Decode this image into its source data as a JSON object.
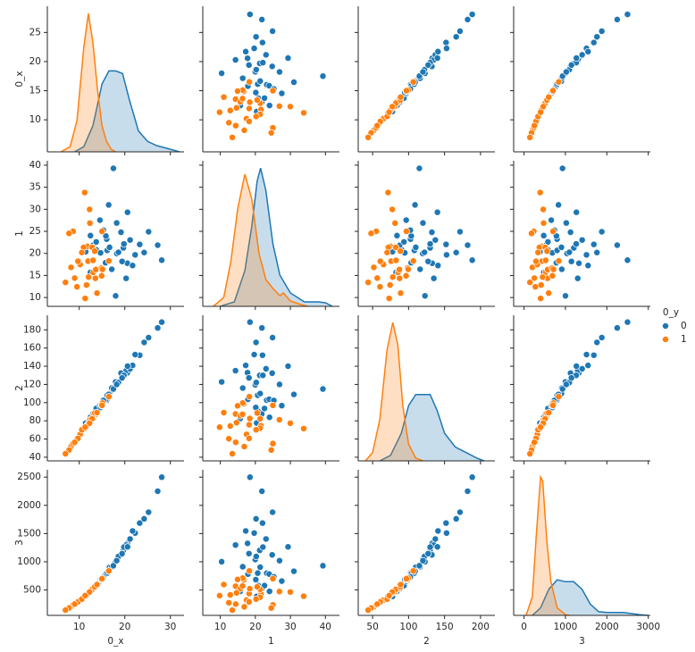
{
  "chart_data": {
    "type": "pairplot",
    "variables": [
      "0_x",
      "1",
      "2",
      "3"
    ],
    "legend_title": "0_y",
    "axes": [
      {
        "xlim": [
          3,
          33
        ],
        "xticks": [
          10,
          20,
          30
        ],
        "ylim": [
          4.5,
          29.5
        ],
        "yticks": [
          10,
          15,
          20,
          25
        ]
      },
      {
        "xlim": [
          5,
          44
        ],
        "xticks": [
          10,
          20,
          30,
          40
        ],
        "ylim": [
          8,
          41
        ],
        "yticks": [
          10,
          15,
          20,
          25,
          30,
          35,
          40
        ]
      },
      {
        "xlim": [
          30,
          220
        ],
        "xticks": [
          50,
          100,
          150,
          200
        ],
        "ylim": [
          36,
          196
        ],
        "yticks": [
          40,
          60,
          80,
          100,
          120,
          140,
          160,
          180
        ]
      },
      {
        "xlim": [
          -250,
          3050
        ],
        "xticks": [
          0,
          1000,
          2000,
          3000
        ],
        "ylim": [
          50,
          2630
        ],
        "yticks": [
          500,
          1000,
          1500,
          2000,
          2500
        ]
      }
    ],
    "series": [
      {
        "name": "0",
        "color": "#1f77b4",
        "columns": [
          [
            17.99,
            20.57,
            19.69,
            11.42,
            20.29,
            12.45,
            18.25,
            13.71,
            13.0,
            12.46,
            16.02,
            15.78,
            19.17,
            15.85,
            13.73,
            14.54,
            14.68,
            16.13,
            19.81,
            21.16,
            16.65,
            17.14,
            18.61,
            28.11,
            27.22,
            25.22,
            23.27,
            24.25,
            22.27,
            17.5,
            18.22,
            21.71,
            16.46,
            15.3,
            19.4,
            20.6
          ],
          [
            10.38,
            17.77,
            21.25,
            20.38,
            14.34,
            15.7,
            19.98,
            20.83,
            21.82,
            24.04,
            23.24,
            17.89,
            24.8,
            23.95,
            22.61,
            27.54,
            20.13,
            20.68,
            22.15,
            23.04,
            21.38,
            16.4,
            20.25,
            18.47,
            21.87,
            24.91,
            22.04,
            20.2,
            19.67,
            39.28,
            26.9,
            17.25,
            31.0,
            25.27,
            18.18,
            29.33
          ],
          [
            122.8,
            132.9,
            130.0,
            77.6,
            135.1,
            82.6,
            119.6,
            90.2,
            87.5,
            83.9,
            102.7,
            103.6,
            132.4,
            103.7,
            93.6,
            96.7,
            94.7,
            108.1,
            130.0,
            137.2,
            110.0,
            116.0,
            122.1,
            188.5,
            182.1,
            171.5,
            152.1,
            166.2,
            152.8,
            115.0,
            120.0,
            140.9,
            109.0,
            102.4,
            127.2,
            140.1
          ],
          [
            1001,
            1326,
            1203,
            386,
            1297,
            477,
            1040,
            578,
            520,
            476,
            798,
            781,
            1123,
            782,
            578,
            658,
            684,
            799,
            1260,
            1404,
            904,
            912,
            1094,
            2499,
            2250,
            1878,
            1686,
            1761,
            1509,
            930,
            1020,
            1546,
            832,
            732,
            1145,
            1265
          ]
        ],
        "kde": [
          {
            "x": [
              9,
              11,
              13,
              15,
              16.5,
              18,
              19.5,
              21,
              23,
              25,
              27,
              30,
              32
            ],
            "density": [
              0,
              0.01,
              0.05,
              0.13,
              0.155,
              0.155,
              0.15,
              0.1,
              0.04,
              0.02,
              0.012,
              0.005,
              0
            ]
          },
          {
            "x": [
              10,
              14,
              17,
              19,
              20.5,
              21.5,
              23,
              25,
              27,
              30,
              34,
              38,
              40,
              42
            ],
            "density": [
              0,
              0.005,
              0.04,
              0.09,
              0.14,
              0.155,
              0.13,
              0.07,
              0.035,
              0.015,
              0.005,
              0.005,
              0.004,
              0
            ]
          },
          {
            "x": [
              60,
              75,
              90,
              100,
              110,
              120,
              130,
              140,
              150,
              165,
              180,
              195,
              205
            ],
            "density": [
              0,
              0.002,
              0.01,
              0.02,
              0.024,
              0.024,
              0.024,
              0.018,
              0.01,
              0.005,
              0.003,
              0.001,
              0
            ]
          },
          {
            "x": [
              200,
              400,
              600,
              800,
              1000,
              1200,
              1400,
              1600,
              1800,
              2000,
              2400,
              2800,
              3000
            ],
            "density": [
              0,
              0.0002,
              0.0007,
              0.00095,
              0.0009,
              0.0009,
              0.0007,
              0.0003,
              0.0001,
              8e-05,
              8e-05,
              2e-05,
              0
            ]
          }
        ]
      },
      {
        "name": "1",
        "color": "#ff7f0e",
        "columns": [
          [
            13.54,
            13.08,
            9.5,
            11.76,
            13.64,
            11.94,
            8.2,
            12.05,
            13.03,
            8.63,
            10.95,
            14.87,
            7.76,
            6.98,
            12.34,
            15.1,
            10.2,
            9.72,
            11.6,
            16.5,
            12.85,
            11.2,
            13.4,
            10.57,
            14.92,
            12.27,
            9.0,
            13.9,
            15.0,
            11.3
          ],
          [
            14.36,
            15.71,
            12.44,
            21.6,
            16.34,
            18.24,
            16.84,
            14.63,
            18.42,
            25.0,
            21.35,
            16.67,
            24.54,
            13.43,
            26.86,
            16.39,
            17.48,
            18.22,
            12.84,
            18.29,
            21.37,
            33.8,
            20.52,
            20.22,
            14.93,
            29.97,
            14.4,
            11.0,
            25.0,
            9.8
          ],
          [
            87.5,
            85.6,
            60.3,
            74.7,
            87.2,
            75.7,
            51.7,
            78.0,
            82.6,
            55.0,
            71.9,
            98.6,
            47.9,
            43.8,
            81.2,
            99.6,
            65.1,
            60.7,
            74.3,
            106.6,
            82.3,
            71.5,
            88.6,
            70.2,
            96.5,
            77.4,
            56.4,
            89.0,
            97.0,
            73.0
          ],
          [
            567,
            520,
            274,
            428,
            571,
            437,
            202,
            449,
            523,
            235,
            371,
            680,
            181,
            143,
            473,
            711,
            321,
            289,
            413,
            838,
            511,
            390,
            556,
            338,
            687,
            464,
            250,
            596,
            700,
            400
          ]
        ],
        "kde": [
          {
            "x": [
              6,
              8,
              9.5,
              11,
              12,
              13,
              14,
              15,
              16,
              17,
              18
            ],
            "density": [
              0,
              0.01,
              0.06,
              0.2,
              0.265,
              0.21,
              0.12,
              0.05,
              0.02,
              0.005,
              0
            ]
          },
          {
            "x": [
              8,
              11,
              13,
              15,
              17,
              19,
              21,
              23,
              25,
              27,
              28,
              30,
              33,
              35
            ],
            "density": [
              0,
              0.01,
              0.05,
              0.11,
              0.148,
              0.12,
              0.06,
              0.03,
              0.02,
              0.012,
              0.015,
              0.006,
              0.002,
              0
            ]
          },
          {
            "x": [
              40,
              50,
              60,
              70,
              78,
              85,
              92,
              100,
              110,
              120
            ],
            "density": [
              0,
              0.003,
              0.015,
              0.04,
              0.05,
              0.042,
              0.02,
              0.006,
              0.001,
              0
            ]
          },
          {
            "x": [
              50,
              200,
              300,
              400,
              450,
              550,
              650,
              800,
              1000,
              1100
            ],
            "density": [
              0,
              0.0005,
              0.0022,
              0.0037,
              0.0036,
              0.002,
              0.0009,
              0.0002,
              2e-05,
              0
            ]
          }
        ]
      }
    ]
  }
}
